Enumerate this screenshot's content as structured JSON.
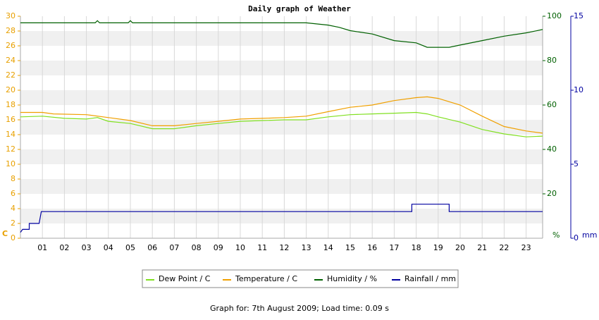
{
  "chart_data": {
    "type": "line",
    "title": "Daily graph of Weather",
    "xlim": [
      0,
      23.75
    ],
    "xticks": [
      {
        "value": 1,
        "label": "01"
      },
      {
        "value": 2,
        "label": "02"
      },
      {
        "value": 3,
        "label": "03"
      },
      {
        "value": 4,
        "label": "04"
      },
      {
        "value": 5,
        "label": "05"
      },
      {
        "value": 6,
        "label": "06"
      },
      {
        "value": 7,
        "label": "07"
      },
      {
        "value": 8,
        "label": "08"
      },
      {
        "value": 9,
        "label": "09"
      },
      10,
      11,
      12,
      13,
      14,
      15,
      16,
      17,
      18,
      19,
      20,
      21,
      22,
      23
    ],
    "ylim": [
      0,
      30
    ],
    "yticks": [
      0,
      2,
      4,
      6,
      8,
      10,
      12,
      14,
      16,
      18,
      20,
      22,
      24,
      26,
      28,
      30
    ],
    "y_label": "C",
    "y2lim": [
      0,
      100
    ],
    "y2ticks": [
      20,
      40,
      60,
      80,
      100
    ],
    "y2_label": "%",
    "y3lim": [
      0,
      15
    ],
    "y3ticks": [
      0,
      5,
      10,
      15
    ],
    "y3_label": "mm",
    "grid": true,
    "series": [
      {
        "name": "Dew Point / C",
        "color": "#80e020",
        "axis": "y",
        "x": [
          0,
          1,
          2,
          3,
          3.5,
          4,
          5,
          6,
          7,
          8,
          9,
          10,
          11,
          12,
          13,
          14,
          15,
          16,
          17,
          18,
          18.5,
          19,
          20,
          21,
          22,
          23,
          23.75
        ],
        "values": [
          16.4,
          16.5,
          16.2,
          16.1,
          16.3,
          15.8,
          15.5,
          14.8,
          14.8,
          15.2,
          15.5,
          15.8,
          15.9,
          16.0,
          16.0,
          16.4,
          16.7,
          16.8,
          16.9,
          17.0,
          16.8,
          16.4,
          15.7,
          14.7,
          14.1,
          13.7,
          13.8
        ]
      },
      {
        "name": "Temperature / C",
        "color": "#f0a000",
        "axis": "y",
        "x": [
          0,
          1,
          1.5,
          3,
          4,
          5,
          6,
          7,
          8,
          9,
          10,
          11,
          12,
          13,
          14,
          15,
          16,
          17,
          18,
          18.5,
          19,
          20,
          21,
          22,
          23,
          23.75
        ],
        "values": [
          17.0,
          17.0,
          16.8,
          16.7,
          16.3,
          15.9,
          15.2,
          15.2,
          15.5,
          15.8,
          16.1,
          16.2,
          16.3,
          16.5,
          17.1,
          17.7,
          18.0,
          18.6,
          19.0,
          19.1,
          18.9,
          18.0,
          16.5,
          15.1,
          14.5,
          14.2
        ]
      },
      {
        "name": "Humidity / %",
        "color": "#006000",
        "axis": "y2",
        "x": [
          0,
          3.4,
          3.5,
          3.6,
          4.9,
          5,
          5.1,
          13,
          14,
          14.5,
          15,
          16,
          17,
          18,
          18.5,
          19.5,
          20,
          21,
          22,
          23,
          23.75
        ],
        "values": [
          97,
          97,
          98,
          97,
          97,
          98,
          97,
          97,
          96,
          95,
          93.5,
          92,
          89,
          88,
          86,
          86,
          87,
          89,
          91,
          92.5,
          94
        ]
      },
      {
        "name": "Rainfall / mm",
        "color": "#0000a0",
        "axis": "y3",
        "x": [
          0,
          0.1,
          0.4,
          0.4,
          0.85,
          0.95,
          17.8,
          17.8,
          19.5,
          19.5,
          23.75
        ],
        "values": [
          0.4,
          0.6,
          0.6,
          1.0,
          1.0,
          1.8,
          1.8,
          2.3,
          2.3,
          1.8,
          1.8
        ]
      }
    ],
    "footer": "Graph for: 7th August 2009; Load time: 0.09 s"
  }
}
